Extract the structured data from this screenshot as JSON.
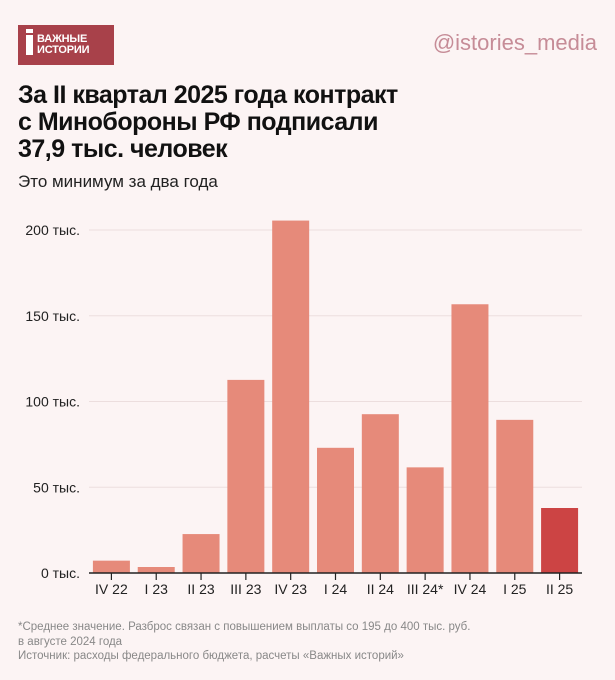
{
  "header": {
    "logo_text": [
      "ВАЖНЫЕ",
      "ИСТОРИИ"
    ],
    "handle": "@istories_media",
    "title_lines": [
      "За II квартал 2025 года контракт",
      "с Минобороны РФ подписали",
      "37,9 тыс. человек"
    ],
    "subtitle": "Это минимум за два года"
  },
  "colors": {
    "background": "#fcf4f4",
    "bar": "#e68a7a",
    "highlight": "#cc4444",
    "logo": "#a8414a"
  },
  "chart_data": {
    "type": "bar",
    "title": "За II квартал 2025 года контракт с Минобороны РФ подписали 37,9 тыс. человек",
    "subtitle": "Это минимум за два года",
    "categories": [
      "IV 22",
      "I 23",
      "II 23",
      "III 23",
      "IV 23",
      "I 24",
      "II 24",
      "III 24*",
      "IV 24",
      "I 25",
      "II 25"
    ],
    "values": [
      7.2,
      3.5,
      22.7,
      112.6,
      205.5,
      73,
      92.6,
      61.6,
      156.7,
      89.3,
      37.9
    ],
    "unit": "тыс.",
    "highlighted": "II 25",
    "ylim": [
      0,
      200
    ],
    "yticks": [
      0,
      50,
      100,
      150,
      200
    ],
    "ytick_labels": [
      "0 тыс.",
      "50 тыс.",
      "100 тыс.",
      "150 тыс.",
      "200 тыс."
    ],
    "grid": true,
    "legend": "none"
  },
  "footer": {
    "note_lines": [
      "*Среднее значение. Разброс связан с повышением выплаты со 195 до 400 тыс. руб.",
      "в августе 2024 года"
    ],
    "source": "Источник: расходы федерального бюджета, расчеты «Важных историй»"
  }
}
